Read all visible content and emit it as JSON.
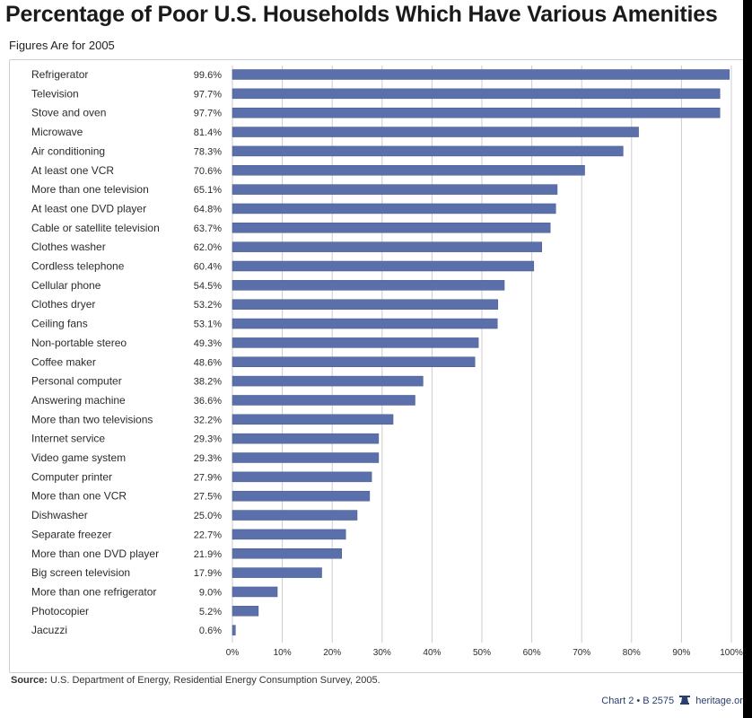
{
  "header": {
    "title": "Percentage of Poor U.S. Households Which Have Various Amenities",
    "subtitle": "Figures Are for 2005"
  },
  "footer": {
    "source_label": "Source:",
    "source_text": "U.S. Department of Energy, Residential Energy Consumption Survey, 2005.",
    "chart_id": "Chart 2 • B 2575",
    "site": "heritage.org"
  },
  "colors": {
    "bar": "#5b70ab",
    "bar_edge": "#46598f",
    "grid": "#cccccc",
    "text": "#2b2b2b"
  },
  "chart_data": {
    "type": "bar",
    "orientation": "horizontal",
    "title": "Percentage of Poor U.S. Households Which Have Various Amenities",
    "subtitle": "Figures Are for 2005",
    "xlim": [
      0,
      100
    ],
    "x_ticks": [
      "0%",
      "10%",
      "20%",
      "30%",
      "40%",
      "50%",
      "60%",
      "70%",
      "80%",
      "90%",
      "100%"
    ],
    "grid": true,
    "categories": [
      "Refrigerator",
      "Television",
      "Stove and oven",
      "Microwave",
      "Air conditioning",
      "At least one VCR",
      "More than one television",
      "At least one DVD player",
      "Cable or satellite television",
      "Clothes washer",
      "Cordless telephone",
      "Cellular phone",
      "Clothes dryer",
      "Ceiling fans",
      "Non-portable stereo",
      "Coffee maker",
      "Personal computer",
      "Answering machine",
      "More than two televisions",
      "Internet service",
      "Video game system",
      "Computer printer",
      "More than one VCR",
      "Dishwasher",
      "Separate freezer",
      "More than one DVD player",
      "Big screen television",
      "More than one refrigerator",
      "Photocopier",
      "Jacuzzi"
    ],
    "values": [
      99.6,
      97.7,
      97.7,
      81.4,
      78.3,
      70.6,
      65.1,
      64.8,
      63.7,
      62.0,
      60.4,
      54.5,
      53.2,
      53.1,
      49.3,
      48.6,
      38.2,
      36.6,
      32.2,
      29.3,
      29.3,
      27.9,
      27.5,
      25.0,
      22.7,
      21.9,
      17.9,
      9.0,
      5.2,
      0.6
    ],
    "value_labels": [
      "99.6%",
      "97.7%",
      "97.7%",
      "81.4%",
      "78.3%",
      "70.6%",
      "65.1%",
      "64.8%",
      "63.7%",
      "62.0%",
      "60.4%",
      "54.5%",
      "53.2%",
      "53.1%",
      "49.3%",
      "48.6%",
      "38.2%",
      "36.6%",
      "32.2%",
      "29.3%",
      "29.3%",
      "27.9%",
      "27.5%",
      "25.0%",
      "22.7%",
      "21.9%",
      "17.9%",
      "9.0%",
      "5.2%",
      "0.6%"
    ]
  }
}
